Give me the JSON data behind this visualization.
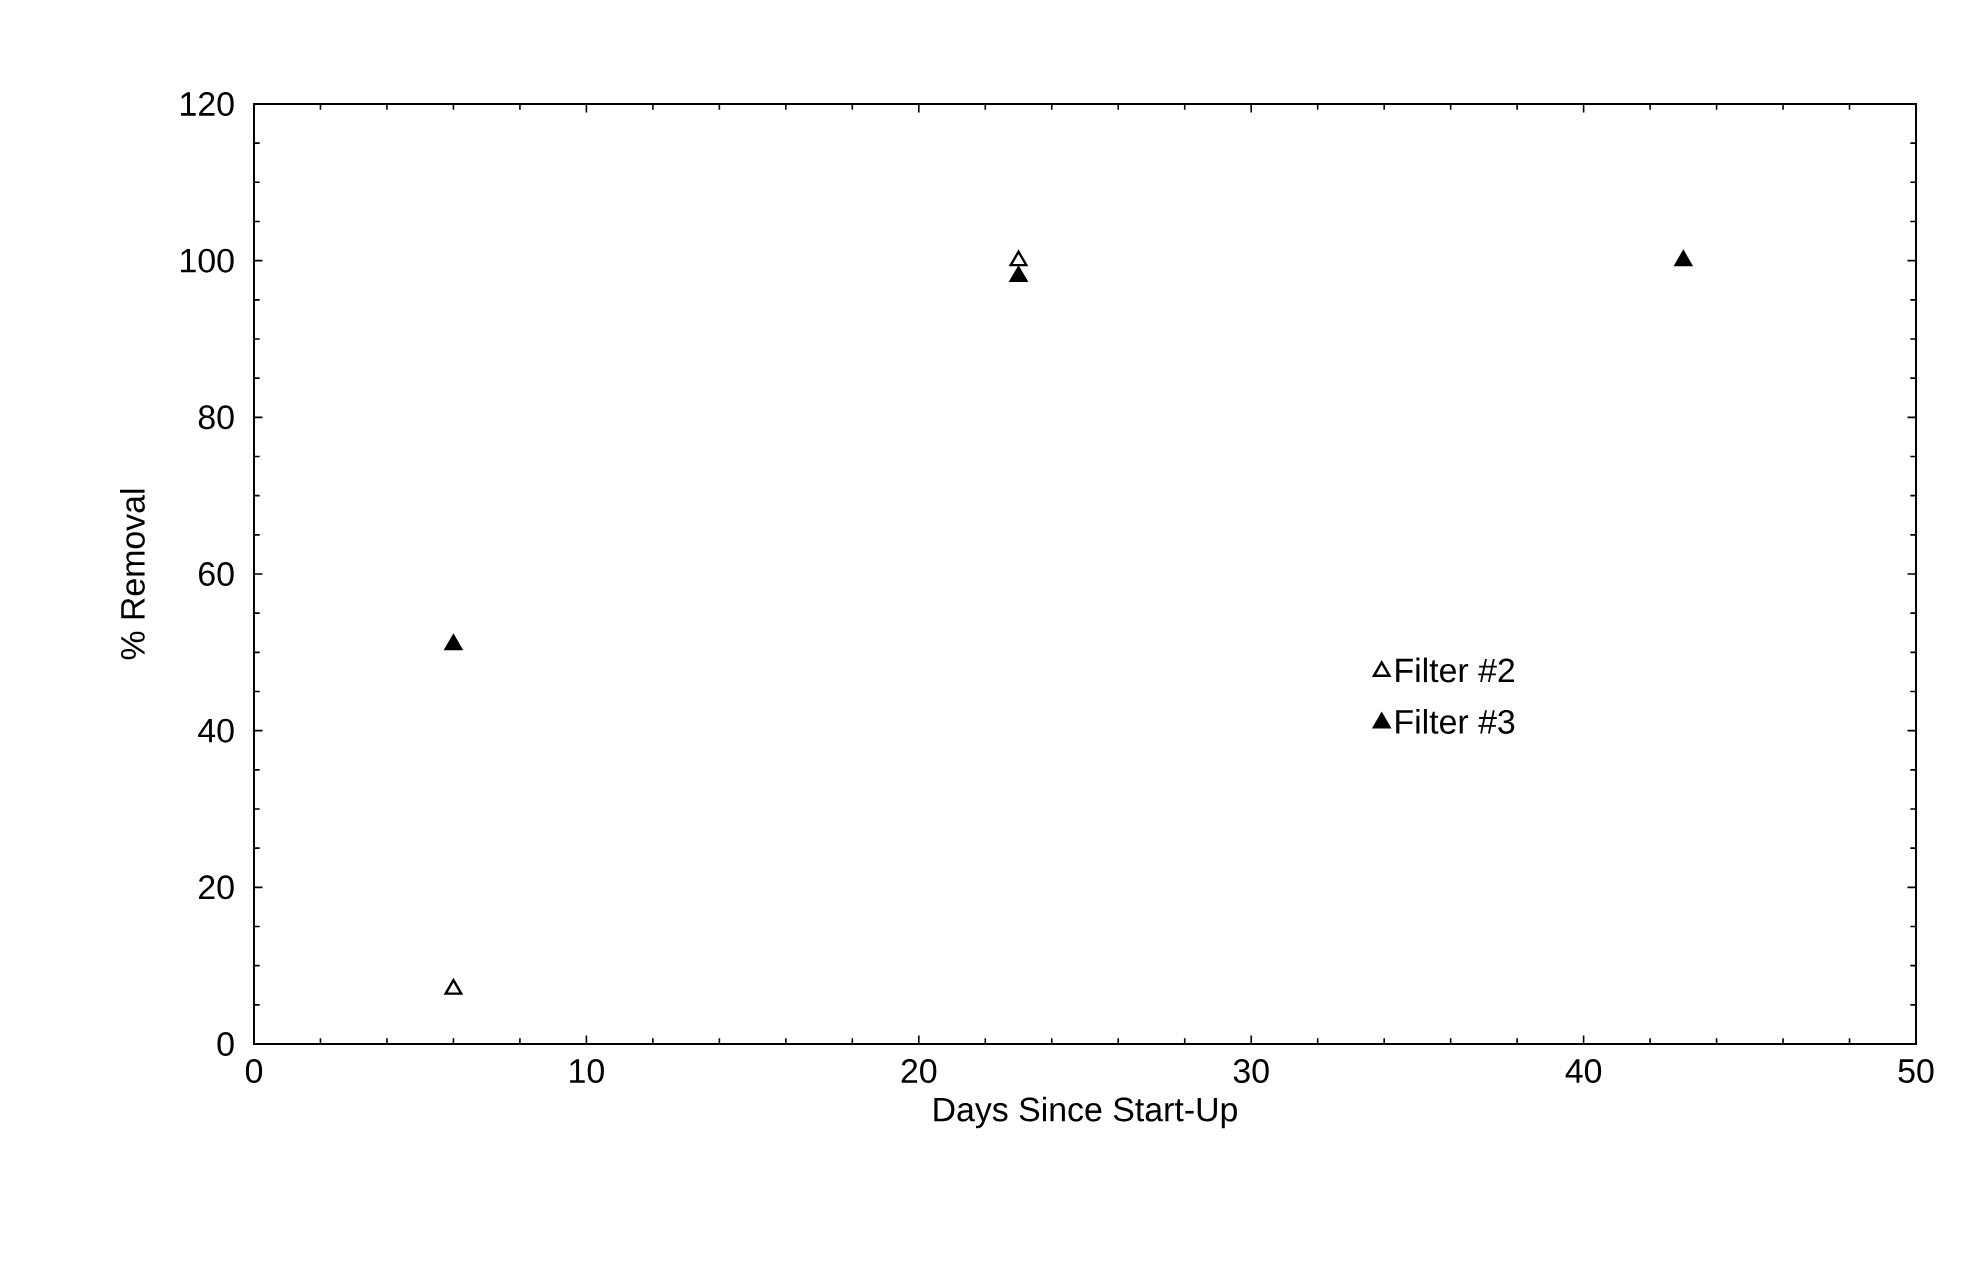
{
  "chart_data": {
    "type": "scatter",
    "xlabel": "Days Since Start-Up",
    "ylabel": "% Removal",
    "x": [
      6,
      23,
      43
    ],
    "series": [
      {
        "name": "Filter #2",
        "color": "#ffffff",
        "values": [
          7,
          100,
          null
        ]
      },
      {
        "name": "Filter #3",
        "color": "#000000",
        "values": [
          51,
          98,
          100
        ]
      }
    ],
    "xlim": [
      0,
      50
    ],
    "xticks": [
      0,
      10,
      20,
      30,
      40,
      50
    ],
    "ylim": [
      0,
      120
    ],
    "yticks": [
      0,
      20,
      40,
      60,
      80,
      100,
      120
    ],
    "marker": "triangle",
    "legend": "right",
    "grid": false
  }
}
